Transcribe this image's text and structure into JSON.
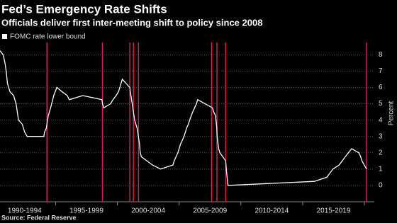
{
  "chart_data": {
    "type": "line",
    "title": "Fed’s Emergency Rate Shifts",
    "subtitle": "Officials deliver first inter-meeting shift to policy since 2008",
    "source": "Source: Federal Reserve",
    "y_label": "Percent",
    "grid": true,
    "xlim": [
      1990.5,
      2020.8
    ],
    "ylim": [
      -1,
      8.75
    ],
    "yticks": [
      0,
      1,
      2,
      3,
      4,
      5,
      6,
      7,
      8
    ],
    "period_bounds": [
      1990,
      1995,
      2000,
      2005,
      2010,
      2015,
      2020
    ],
    "period_labels": [
      "1990-1994",
      "1995-1999",
      "2000-2004",
      "2005-2009",
      "2010-2014",
      "2015-2019"
    ],
    "emergency_shifts": {
      "color": "#d0205e",
      "x": [
        1994.3,
        1998.79,
        2001.01,
        2001.3,
        2001.71,
        2007.63,
        2008.06,
        2008.77,
        2020.17
      ]
    },
    "series": [
      {
        "name": "FOMC rate lower bound",
        "color": "#ffffff",
        "x": [
          1990.5,
          1990.75,
          1990.9,
          1991.0,
          1991.1,
          1991.3,
          1991.6,
          1991.8,
          1991.9,
          1992.0,
          1992.3,
          1992.5,
          1992.7,
          1994.05,
          1994.1,
          1994.25,
          1994.3,
          1994.4,
          1994.6,
          1994.85,
          1995.1,
          1995.5,
          1995.95,
          1996.1,
          1997.2,
          1998.75,
          1998.8,
          1998.9,
          1999.45,
          1999.65,
          1999.9,
          2000.1,
          2000.2,
          2000.4,
          2001.0,
          2001.1,
          2001.2,
          2001.3,
          2001.4,
          2001.5,
          2001.6,
          2001.7,
          2001.8,
          2001.85,
          2001.95,
          2002.85,
          2003.5,
          2004.5,
          2004.6,
          2004.75,
          2004.9,
          2005.0,
          2005.1,
          2005.25,
          2005.4,
          2005.5,
          2005.6,
          2005.75,
          2005.85,
          2006.1,
          2006.25,
          2006.4,
          2006.5,
          2007.7,
          2007.8,
          2007.95,
          2008.05,
          2008.08,
          2008.2,
          2008.3,
          2008.77,
          2008.82,
          2008.95,
          2015.95,
          2016.95,
          2017.2,
          2017.45,
          2017.95,
          2018.2,
          2018.45,
          2018.7,
          2018.97,
          2019.55,
          2019.7,
          2019.8,
          2020.17
        ],
        "values": [
          8.25,
          8.0,
          7.5,
          7.0,
          6.25,
          5.75,
          5.5,
          5.0,
          4.5,
          4.0,
          3.75,
          3.25,
          3.0,
          3.0,
          3.25,
          3.5,
          3.75,
          4.25,
          4.75,
          5.5,
          6.0,
          5.75,
          5.5,
          5.25,
          5.5,
          5.25,
          5.0,
          4.75,
          5.0,
          5.25,
          5.5,
          5.75,
          6.0,
          6.5,
          6.0,
          5.5,
          5.0,
          4.5,
          4.0,
          3.75,
          3.5,
          3.0,
          2.5,
          2.0,
          1.75,
          1.25,
          1.0,
          1.25,
          1.5,
          1.75,
          2.0,
          2.25,
          2.5,
          2.75,
          3.0,
          3.25,
          3.5,
          3.75,
          4.0,
          4.5,
          4.75,
          5.0,
          5.25,
          4.75,
          4.5,
          4.25,
          3.5,
          3.0,
          2.25,
          2.0,
          1.5,
          1.0,
          0.0,
          0.25,
          0.5,
          0.75,
          1.0,
          1.25,
          1.5,
          1.75,
          2.0,
          2.25,
          2.0,
          1.75,
          1.5,
          1.0
        ]
      }
    ]
  }
}
